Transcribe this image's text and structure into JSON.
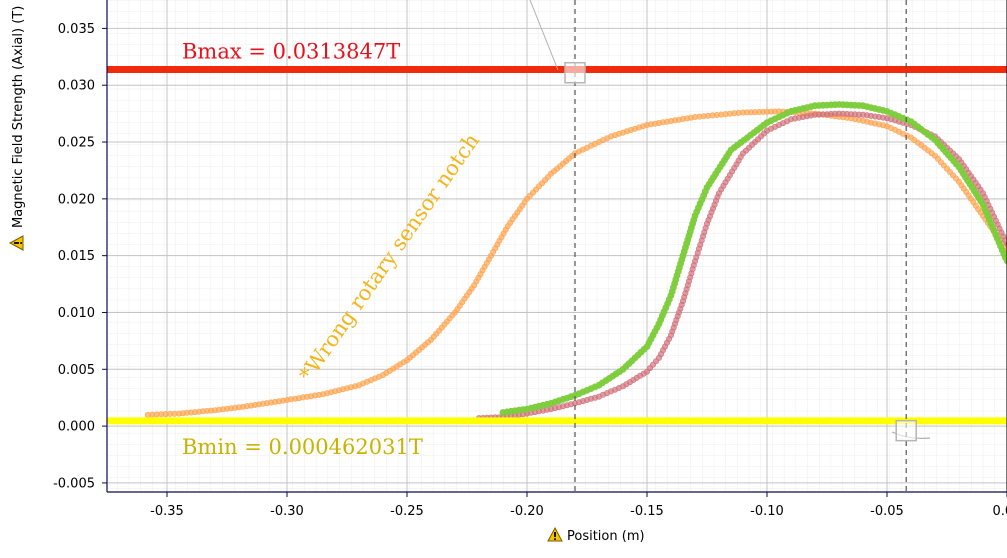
{
  "chart_data": {
    "type": "scatter",
    "xlabel": "Position (m)",
    "ylabel": "Magnetic Field Strength (Axial) (T)",
    "xlim": [
      -0.375,
      0.0
    ],
    "ylim": [
      -0.0058,
      0.0375
    ],
    "x_ticks": [
      "-0.35",
      "-0.30",
      "-0.25",
      "-0.20",
      "-0.15",
      "-0.10",
      "-0.05",
      "0.00"
    ],
    "y_ticks": [
      "-0.005",
      "0.000",
      "0.005",
      "0.010",
      "0.015",
      "0.020",
      "0.025",
      "0.030",
      "0.035"
    ],
    "grid": true,
    "warning_icon": "warning-triangle-icon",
    "reference_lines": [
      {
        "name": "Bmax",
        "value": 0.0313847,
        "label": "Bmax = 0.0313847T",
        "line_color": "#f02a0a",
        "text_color": "#e8101a"
      },
      {
        "name": "Bmin",
        "value": 0.00046203,
        "label": "Bmin = 0.000462031T",
        "line_color": "#ffff00",
        "text_color": "#c8b400"
      }
    ],
    "cursor_lines": [
      {
        "x": -0.18,
        "color": "#555555",
        "marker_y": 0.0311
      },
      {
        "x": -0.042,
        "color": "#555555",
        "marker_y": -0.0004
      }
    ],
    "annotations": [
      {
        "text": "*Wrong rotary sensor notch",
        "color": "#f4b51a",
        "x": -0.255,
        "y": 0.0145,
        "rotation": -55
      }
    ],
    "series": [
      {
        "color": "#ffa552",
        "points": [
          [
            -0.358,
            0.001
          ],
          [
            -0.345,
            0.0011
          ],
          [
            -0.33,
            0.0014
          ],
          [
            -0.315,
            0.0018
          ],
          [
            -0.3,
            0.0023
          ],
          [
            -0.285,
            0.0028
          ],
          [
            -0.27,
            0.0036
          ],
          [
            -0.26,
            0.0045
          ],
          [
            -0.25,
            0.0058
          ],
          [
            -0.24,
            0.0076
          ],
          [
            -0.23,
            0.01
          ],
          [
            -0.222,
            0.0124
          ],
          [
            -0.215,
            0.015
          ],
          [
            -0.208,
            0.0176
          ],
          [
            -0.2,
            0.02
          ],
          [
            -0.19,
            0.0222
          ],
          [
            -0.18,
            0.024
          ],
          [
            -0.165,
            0.0255
          ],
          [
            -0.15,
            0.0265
          ],
          [
            -0.13,
            0.0272
          ],
          [
            -0.11,
            0.0276
          ],
          [
            -0.095,
            0.0277
          ],
          [
            -0.08,
            0.0275
          ],
          [
            -0.065,
            0.0271
          ],
          [
            -0.05,
            0.0264
          ],
          [
            -0.04,
            0.0254
          ],
          [
            -0.03,
            0.0238
          ],
          [
            -0.02,
            0.0215
          ],
          [
            -0.01,
            0.0185
          ],
          [
            0.0,
            0.0155
          ]
        ]
      },
      {
        "color": "#d2727c",
        "points": [
          [
            -0.22,
            0.0007
          ],
          [
            -0.21,
            0.0008
          ],
          [
            -0.2,
            0.0011
          ],
          [
            -0.19,
            0.0015
          ],
          [
            -0.18,
            0.002
          ],
          [
            -0.17,
            0.0026
          ],
          [
            -0.16,
            0.0035
          ],
          [
            -0.15,
            0.0048
          ],
          [
            -0.145,
            0.006
          ],
          [
            -0.14,
            0.008
          ],
          [
            -0.135,
            0.011
          ],
          [
            -0.13,
            0.0145
          ],
          [
            -0.125,
            0.0178
          ],
          [
            -0.12,
            0.0205
          ],
          [
            -0.11,
            0.024
          ],
          [
            -0.1,
            0.026
          ],
          [
            -0.09,
            0.027
          ],
          [
            -0.08,
            0.0274
          ],
          [
            -0.07,
            0.0275
          ],
          [
            -0.06,
            0.0274
          ],
          [
            -0.05,
            0.0271
          ],
          [
            -0.04,
            0.0265
          ],
          [
            -0.03,
            0.0255
          ],
          [
            -0.02,
            0.0235
          ],
          [
            -0.01,
            0.0205
          ],
          [
            0.0,
            0.016
          ]
        ]
      },
      {
        "color": "#7ccc3a",
        "points": [
          [
            -0.21,
            0.0012
          ],
          [
            -0.2,
            0.0015
          ],
          [
            -0.19,
            0.002
          ],
          [
            -0.18,
            0.0027
          ],
          [
            -0.17,
            0.0036
          ],
          [
            -0.16,
            0.005
          ],
          [
            -0.15,
            0.007
          ],
          [
            -0.145,
            0.009
          ],
          [
            -0.14,
            0.0115
          ],
          [
            -0.135,
            0.015
          ],
          [
            -0.13,
            0.0185
          ],
          [
            -0.125,
            0.021
          ],
          [
            -0.115,
            0.0243
          ],
          [
            -0.1,
            0.0267
          ],
          [
            -0.09,
            0.0277
          ],
          [
            -0.08,
            0.0282
          ],
          [
            -0.07,
            0.0283
          ],
          [
            -0.06,
            0.0282
          ],
          [
            -0.05,
            0.0277
          ],
          [
            -0.04,
            0.0268
          ],
          [
            -0.03,
            0.0252
          ],
          [
            -0.02,
            0.0228
          ],
          [
            -0.01,
            0.0195
          ],
          [
            0.0,
            0.0145
          ]
        ]
      }
    ]
  }
}
